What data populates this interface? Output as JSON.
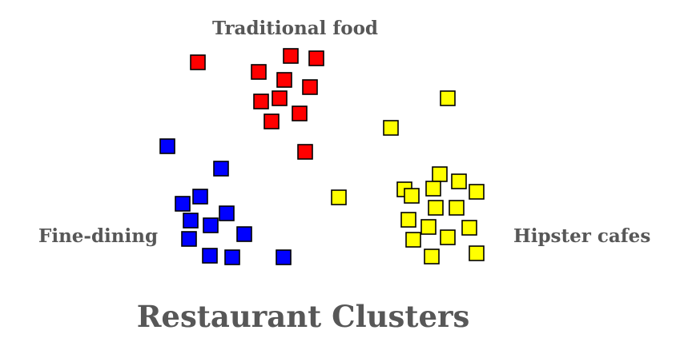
{
  "title": "Restaurant Clusters",
  "colors": {
    "red": "#ff0000",
    "blue": "#0000ff",
    "yellow": "#ffff00",
    "outline": "#000000",
    "text": "#575757"
  },
  "clusters": [
    {
      "id": "traditional",
      "label": "Traditional food",
      "color": "red"
    },
    {
      "id": "fine",
      "label": "Fine-dining",
      "color": "blue"
    },
    {
      "id": "hipster",
      "label": "Hipster cafes",
      "color": "yellow"
    }
  ]
}
